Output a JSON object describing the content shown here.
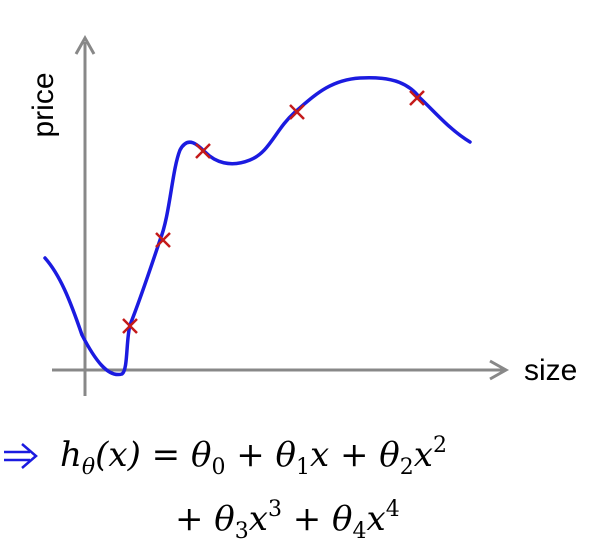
{
  "axes": {
    "y_label": "price",
    "x_label": "size"
  },
  "formula": {
    "line1": [
      "h",
      "θ",
      "(x) = θ",
      "0",
      " + θ",
      "1",
      "x + θ",
      "2",
      "x",
      "2"
    ],
    "line2": [
      "+ θ",
      "3",
      "x",
      "3",
      " + θ",
      "4",
      "x",
      "4"
    ]
  }
}
